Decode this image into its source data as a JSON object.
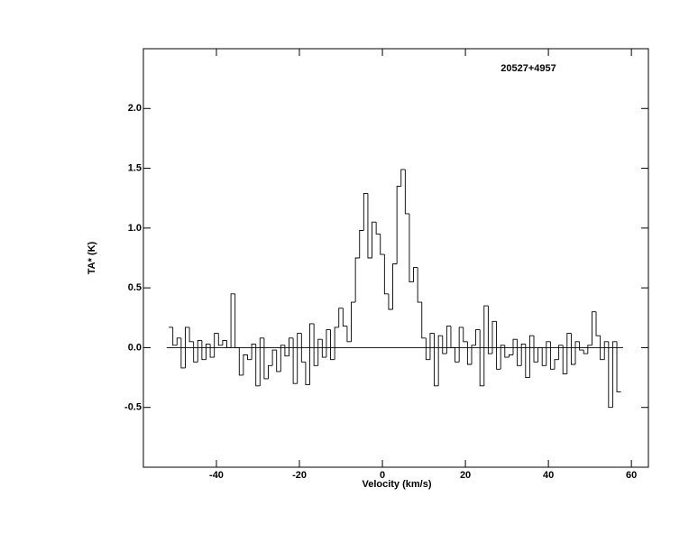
{
  "chart_data": {
    "type": "step",
    "title": "20527+4957",
    "x_label": "Velocity (km/s)",
    "y_label": "TA* (K)",
    "xlim": [
      -57.6,
      64.1
    ],
    "ylim": [
      -1.0,
      2.5
    ],
    "xticks": [
      -40,
      -20,
      0,
      20,
      40,
      60
    ],
    "yticks": [
      -0.5,
      {
        "value": 0,
        "label": "0.0"
      },
      0.5,
      {
        "value": 1,
        "label": "1.0"
      },
      1.5,
      {
        "value": 2,
        "label": "2.0"
      }
    ],
    "baseline": 0,
    "color": "#000000",
    "x": [
      -51,
      -50,
      -49,
      -48,
      -47,
      -46,
      -45,
      -44,
      -43,
      -42,
      -41,
      -40,
      -39,
      -38,
      -37,
      -36,
      -35,
      -34,
      -33,
      -32,
      -31,
      -30,
      -29,
      -28,
      -27,
      -26,
      -25,
      -24,
      -23,
      -22,
      -21,
      -20,
      -19,
      -18,
      -17,
      -16,
      -15,
      -14,
      -13,
      -12,
      -11,
      -10,
      -9,
      -8,
      -7,
      -6,
      -5,
      -4,
      -3,
      -2,
      -1,
      0,
      1,
      2,
      3,
      4,
      5,
      6,
      7,
      8,
      9,
      10,
      11,
      12,
      13,
      14,
      15,
      16,
      17,
      18,
      19,
      20,
      21,
      22,
      23,
      24,
      25,
      26,
      27,
      28,
      29,
      30,
      31,
      32,
      33,
      34,
      35,
      36,
      37,
      38,
      39,
      40,
      41,
      42,
      43,
      44,
      45,
      46,
      47,
      48,
      49,
      50,
      51,
      52,
      53,
      54,
      55,
      56,
      57
    ],
    "values": [
      0.17,
      0.02,
      0.08,
      -0.17,
      0.17,
      0.05,
      -0.12,
      0.06,
      -0.1,
      0.03,
      -0.08,
      0.12,
      0.02,
      0.06,
      0.0,
      0.45,
      0.0,
      -0.23,
      -0.06,
      -0.1,
      0.03,
      -0.32,
      0.08,
      -0.26,
      -0.15,
      -0.02,
      -0.2,
      0.02,
      -0.07,
      0.08,
      -0.3,
      0.12,
      -0.12,
      -0.31,
      0.2,
      -0.15,
      0.07,
      -0.08,
      0.15,
      -0.1,
      0.17,
      0.33,
      0.18,
      0.05,
      0.38,
      0.75,
      0.98,
      1.29,
      0.75,
      1.05,
      0.95,
      0.78,
      0.45,
      0.32,
      0.7,
      1.35,
      1.49,
      1.12,
      0.55,
      0.67,
      0.38,
      0.08,
      -0.1,
      0.12,
      -0.32,
      0.1,
      -0.05,
      0.18,
      0.0,
      -0.12,
      0.17,
      0.05,
      -0.14,
      0.02,
      0.15,
      -0.32,
      0.35,
      -0.05,
      0.22,
      -0.18,
      0.02,
      -0.08,
      -0.06,
      0.07,
      -0.15,
      0.03,
      -0.25,
      0.1,
      -0.12,
      0.0,
      -0.15,
      0.05,
      -0.18,
      -0.1,
      0.02,
      -0.22,
      0.12,
      -0.14,
      0.05,
      -0.02,
      -0.05,
      0.02,
      0.3,
      0.1,
      -0.1,
      0.05,
      -0.5,
      0.05,
      -0.37
    ]
  }
}
